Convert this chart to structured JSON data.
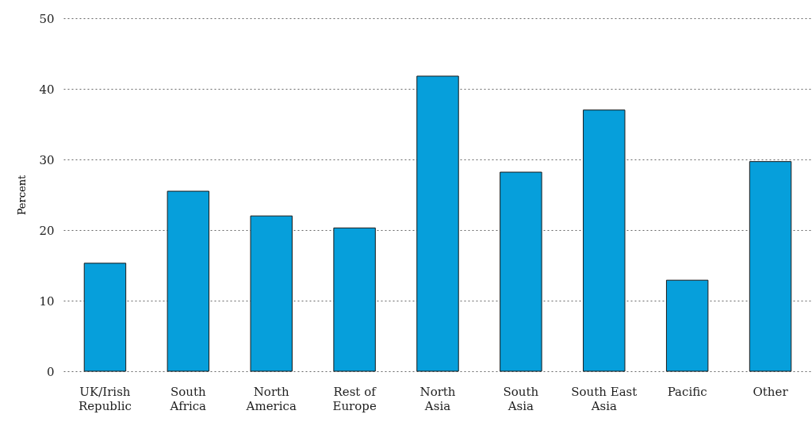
{
  "chart_data": {
    "type": "bar",
    "ylabel": "Percent",
    "categories": [
      "UK/Irish\nRepublic",
      "South\nAfrica",
      "North\nAmerica",
      "Rest of\nEurope",
      "North\nAsia",
      "South\nAsia",
      "South East\nAsia",
      "Pacific",
      "Other"
    ],
    "values": [
      15.3,
      25.5,
      22.0,
      20.3,
      41.8,
      28.2,
      37.0,
      12.9,
      29.7
    ],
    "color": "#069fdb",
    "ylim": [
      0,
      50
    ],
    "yticks": [
      0,
      10,
      20,
      30,
      40,
      50
    ],
    "grid": "y"
  }
}
